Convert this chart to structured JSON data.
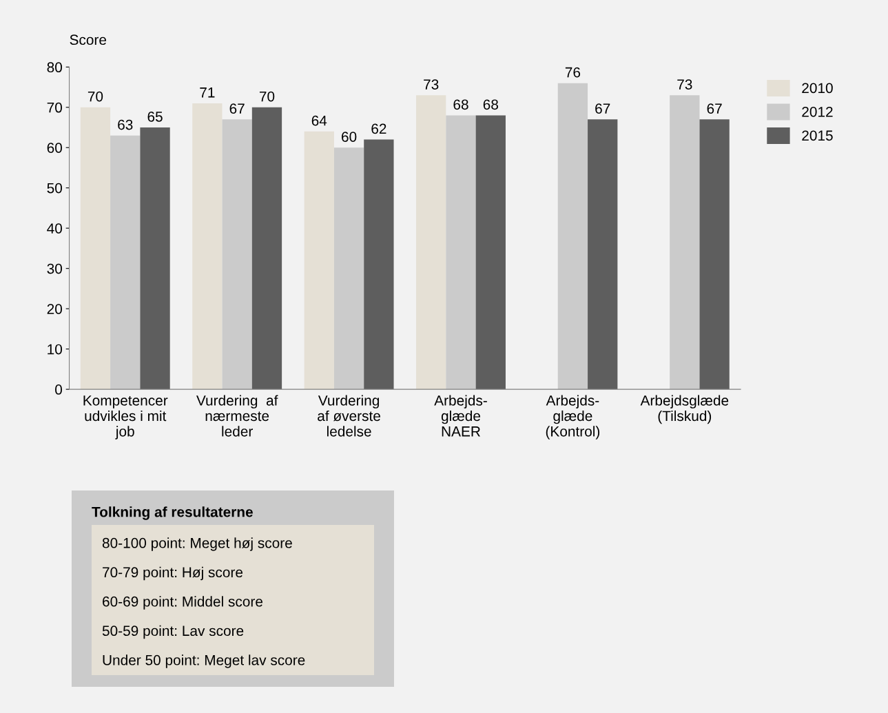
{
  "chart_data": {
    "type": "bar",
    "ylabel": "Score",
    "categories": [
      "Kompetencer\nudvikles i mit\njob",
      "Vurdering  af\nnærmeste\nleder",
      "Vurdering\naf øverste\nledelse",
      "Arbejds-\nglæde\nNAER",
      "Arbejds-\nglæde\n(Kontrol)",
      "Arbejdsglæde\n(Tilskud)"
    ],
    "series": [
      {
        "name": "2010",
        "color": "#e5e0d5",
        "values": [
          70,
          71,
          64,
          73,
          null,
          null
        ]
      },
      {
        "name": "2012",
        "color": "#cbcbcb",
        "values": [
          63,
          67,
          60,
          68,
          76,
          73
        ]
      },
      {
        "name": "2015",
        "color": "#5e5e5e",
        "values": [
          65,
          70,
          62,
          68,
          67,
          67
        ]
      }
    ],
    "ylim": [
      0,
      80
    ],
    "yticks": [
      0,
      10,
      20,
      30,
      40,
      50,
      60,
      70,
      80
    ],
    "data_labels": true,
    "legend": "top right",
    "grid": false,
    "annotations": [
      "Tolkning af resultaterne",
      "80-100 point: Meget høj score",
      "70-79 point: Høj score",
      "60-69 point: Middel score",
      "50-59 point: Lav score",
      "Under 50 point: Meget lav score"
    ]
  }
}
